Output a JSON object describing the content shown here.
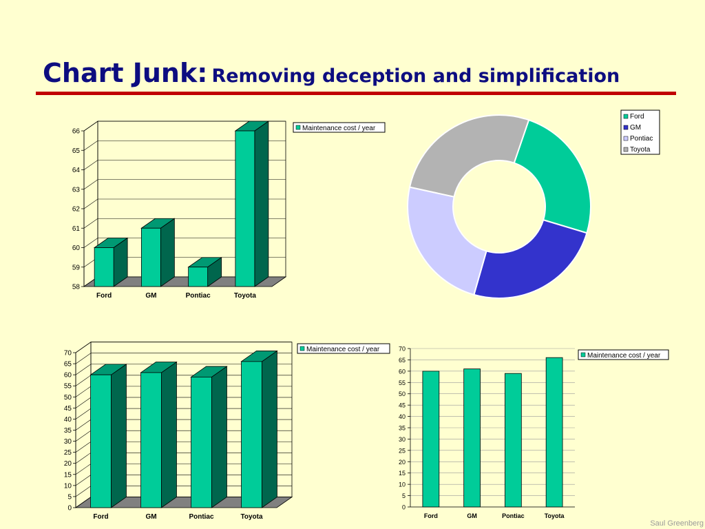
{
  "slide": {
    "title_main": "Chart Junk:",
    "title_sub": "Removing deception and simplification",
    "credit": "Saul Greenberg"
  },
  "colors": {
    "bar": "#00CC99",
    "bar_side": "#00664D",
    "bar_top": "#009973",
    "floor": "#808080",
    "title": "#0D0D80",
    "rule": "#C00000",
    "pie": [
      "#00CC99",
      "#3333CC",
      "#CCCCFF",
      "#B3B3B3"
    ]
  },
  "chart_data": [
    {
      "id": "c1",
      "type": "bar",
      "style": "3d",
      "categories": [
        "Ford",
        "GM",
        "Pontiac",
        "Toyota"
      ],
      "series": [
        {
          "name": "Maintenance cost / year",
          "values": [
            60,
            61,
            59,
            66
          ]
        }
      ],
      "ylim": [
        58,
        66
      ],
      "yticks": [
        58,
        59,
        60,
        61,
        62,
        63,
        64,
        65,
        66
      ],
      "legend": "top-right",
      "grid": true
    },
    {
      "id": "c2",
      "type": "pie",
      "style": "donut",
      "categories": [
        "Ford",
        "GM",
        "Pontiac",
        "Toyota"
      ],
      "values": [
        60,
        61,
        59,
        66
      ],
      "legend": "top-right"
    },
    {
      "id": "c3",
      "type": "bar",
      "style": "3d",
      "categories": [
        "Ford",
        "GM",
        "Pontiac",
        "Toyota"
      ],
      "series": [
        {
          "name": "Maintenance cost / year",
          "values": [
            60,
            61,
            59,
            66
          ]
        }
      ],
      "ylim": [
        0,
        70
      ],
      "yticks": [
        0,
        5,
        10,
        15,
        20,
        25,
        30,
        35,
        40,
        45,
        50,
        55,
        60,
        65,
        70
      ],
      "legend": "top-right",
      "grid": true
    },
    {
      "id": "c4",
      "type": "bar",
      "style": "flat",
      "categories": [
        "Ford",
        "GM",
        "Pontiac",
        "Toyota"
      ],
      "series": [
        {
          "name": "Maintenance cost / year",
          "values": [
            60,
            61,
            59,
            66
          ]
        }
      ],
      "ylim": [
        0,
        70
      ],
      "yticks": [
        0,
        5,
        10,
        15,
        20,
        25,
        30,
        35,
        40,
        45,
        50,
        55,
        60,
        65,
        70
      ],
      "legend": "right",
      "grid": true
    }
  ]
}
